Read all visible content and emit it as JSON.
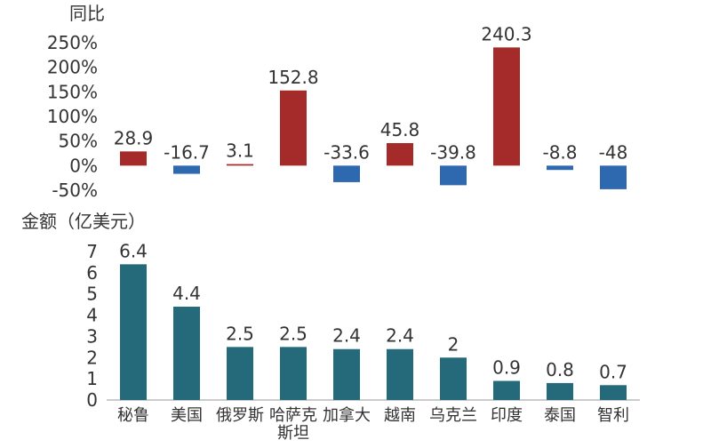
{
  "chart_data": [
    {
      "type": "bar",
      "ylabel": "同比",
      "yticks": [
        "250%",
        "200%",
        "150%",
        "100%",
        "50%",
        "0%",
        "-50%"
      ],
      "ylim": [
        -50,
        250
      ],
      "categories": [
        "秘鲁",
        "美国",
        "俄罗斯",
        "哈萨克斯坦",
        "加拿大",
        "越南",
        "乌克兰",
        "印度",
        "泰国",
        "智利"
      ],
      "series": [
        {
          "values": [
            28.9,
            -16.7,
            3.1,
            152.8,
            -33.6,
            45.8,
            -39.8,
            240.3,
            -8.8,
            -48
          ],
          "labels": [
            "28.9",
            "-16.7",
            "3.1",
            "152.8",
            "-33.6",
            "45.8",
            "-39.8",
            "240.3",
            "-8.8",
            "-48"
          ]
        }
      ],
      "colors": {
        "positive": "#A52A2A",
        "negative": "#2E69B0"
      },
      "grid": false,
      "legend": "none"
    },
    {
      "type": "bar",
      "ylabel": "金额（亿美元）",
      "yticks": [
        "7",
        "6",
        "5",
        "4",
        "3",
        "2",
        "1",
        "0"
      ],
      "ylim": [
        0,
        7
      ],
      "categories": [
        "秘鲁",
        "美国",
        "俄罗斯",
        "哈萨克斯坦",
        "加拿大",
        "越南",
        "乌克兰",
        "印度",
        "泰国",
        "智利"
      ],
      "series": [
        {
          "values": [
            6.4,
            4.4,
            2.5,
            2.5,
            2.4,
            2.4,
            2,
            0.9,
            0.8,
            0.7
          ],
          "labels": [
            "6.4",
            "4.4",
            "2.5",
            "2.5",
            "2.4",
            "2.4",
            "2",
            "0.9",
            "0.8",
            "0.7"
          ]
        }
      ],
      "colors": {
        "bar": "#256A7A",
        "axis": "#999999"
      },
      "grid": false,
      "legend": "none"
    }
  ]
}
